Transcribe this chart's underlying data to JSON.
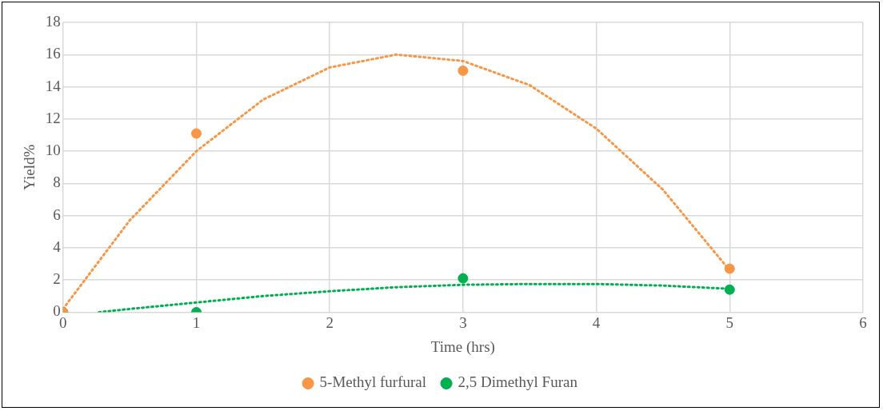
{
  "chart_data": {
    "type": "scatter",
    "xlabel": "Time (hrs)",
    "ylabel": "Yield%",
    "xlim": [
      0,
      6
    ],
    "xticks": [
      0,
      1,
      2,
      3,
      4,
      5,
      6
    ],
    "ylim": [
      0,
      18
    ],
    "yticks": [
      0,
      2,
      4,
      6,
      8,
      10,
      12,
      14,
      16,
      18
    ],
    "grid": true,
    "legend": "bottom",
    "marker": "circle",
    "series": [
      {
        "name": "5-Methyl furfural",
        "color": "#f79646",
        "x": [
          0,
          1,
          3,
          5
        ],
        "values": [
          0,
          11.1,
          15,
          2.7
        ]
      },
      {
        "name": "2,5 Dimethyl Furan",
        "color": "#00b050",
        "x": [
          0,
          1,
          3,
          5
        ],
        "values": [
          0,
          0,
          2.1,
          1.4
        ]
      },
      {
        "type": "line",
        "color": "#f79646",
        "line_style": "dotted",
        "marker": "none",
        "x": [
          0,
          0.5,
          1,
          1.5,
          2,
          2.5,
          3,
          3.5,
          4,
          4.5,
          5
        ],
        "values": [
          0.2,
          5.7,
          10.0,
          13.2,
          15.2,
          16.0,
          15.6,
          14.1,
          11.4,
          7.6,
          2.6
        ]
      },
      {
        "type": "line",
        "color": "#00b050",
        "line_style": "dotted",
        "marker": "none",
        "x": [
          0.27,
          0.5,
          1,
          1.5,
          2,
          2.5,
          3,
          3.5,
          4,
          4.5,
          5
        ],
        "values": [
          0,
          0.2,
          0.6,
          1.0,
          1.3,
          1.55,
          1.7,
          1.75,
          1.75,
          1.65,
          1.45
        ]
      }
    ]
  }
}
